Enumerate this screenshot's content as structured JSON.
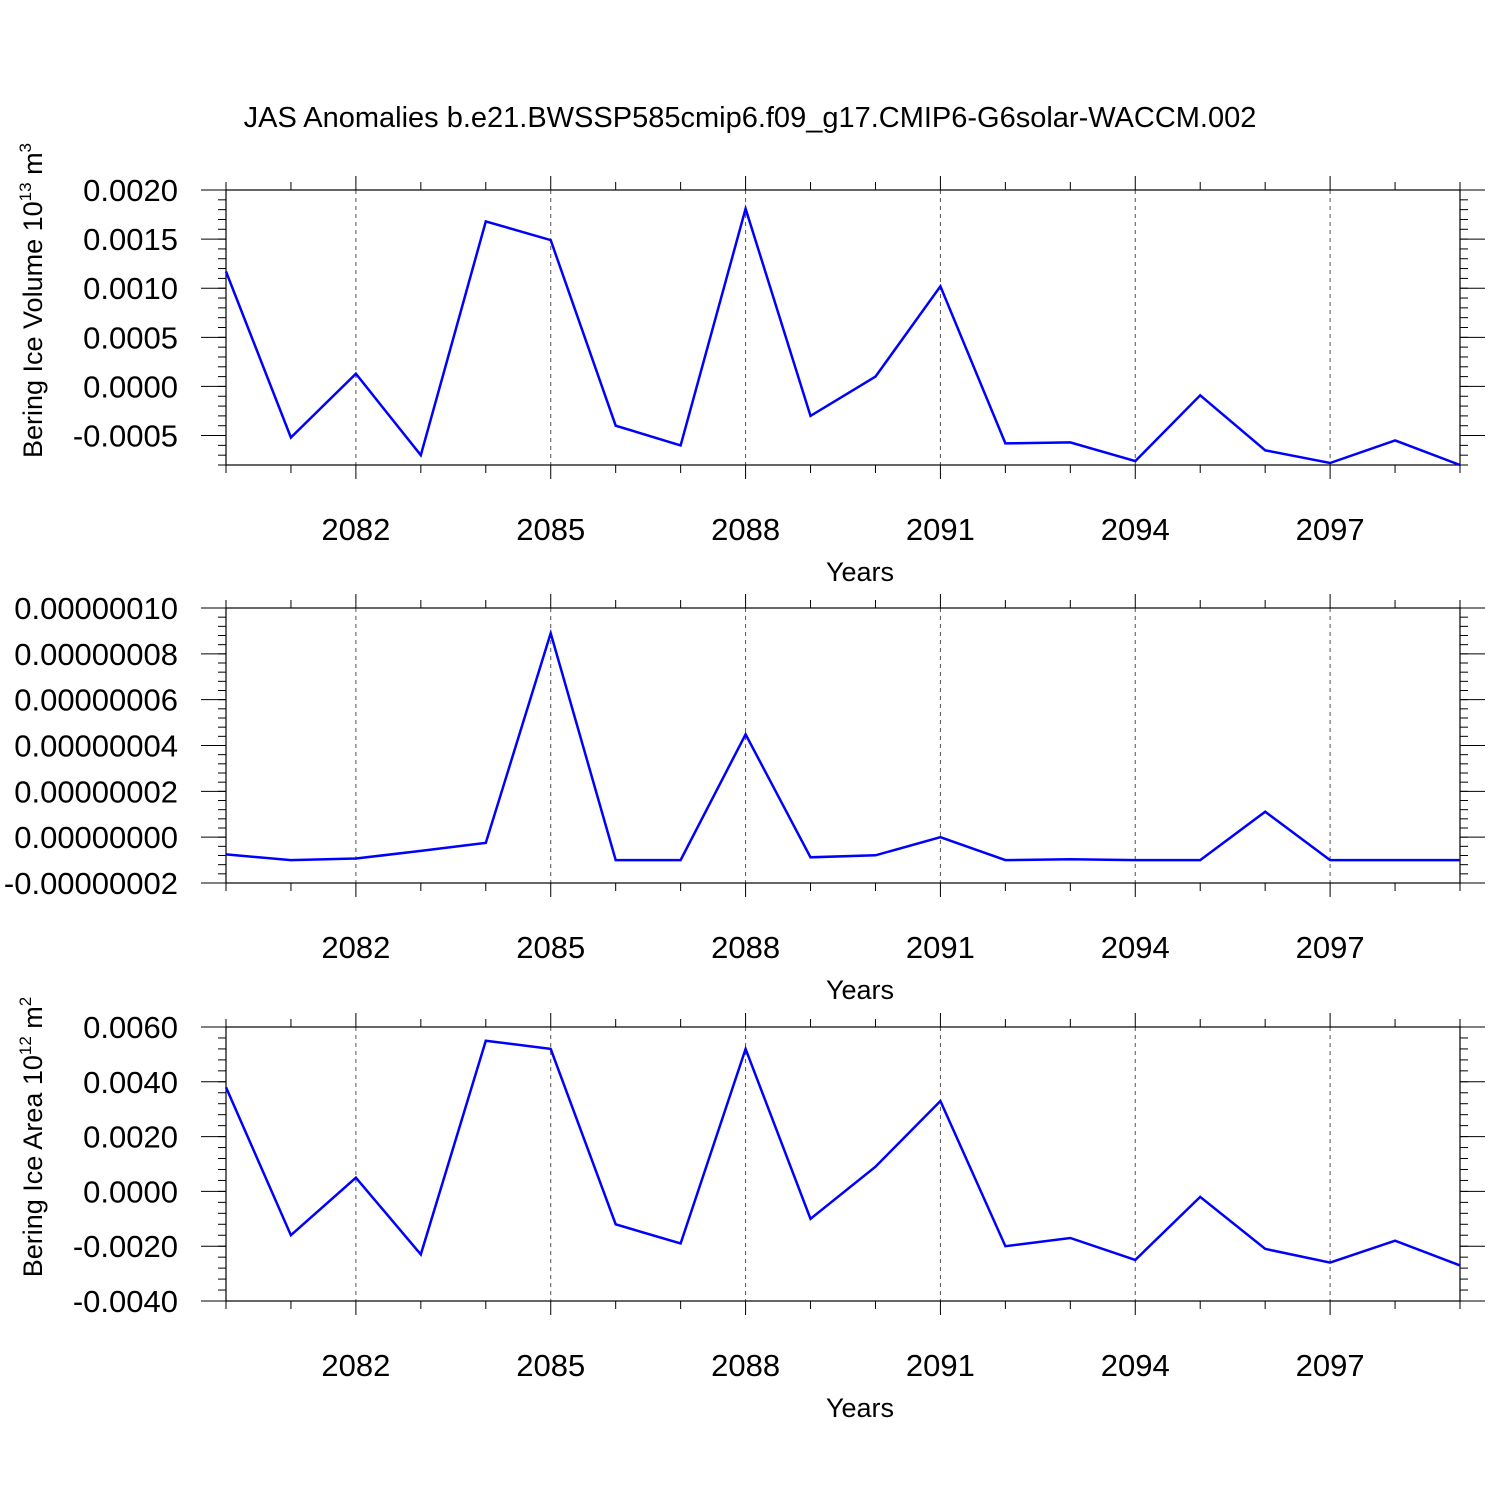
{
  "title": "JAS Anomalies b.e21.BWSSP585cmip6.f09_g17.CMIP6-G6solar-WACCM.002",
  "line_color": "#0000ff",
  "chart_data": [
    {
      "type": "line",
      "xlabel": "Years",
      "ylabel": {
        "text": "Bering Ice Volume 10",
        "sup": "13",
        "unit": " m",
        "unit_sup": "3"
      },
      "xlim": [
        2080,
        2099
      ],
      "ylim": [
        -0.0008,
        0.002
      ],
      "xticks": [
        2082,
        2085,
        2088,
        2091,
        2094,
        2097
      ],
      "xtick_labels": [
        "2082",
        "2085",
        "2088",
        "2091",
        "2094",
        "2097"
      ],
      "yticks": [
        -0.0005,
        0.0,
        0.0005,
        0.001,
        0.0015,
        0.002
      ],
      "ytick_labels": [
        "-0.0005",
        "0.0000",
        "0.0005",
        "0.0010",
        "0.0015",
        "0.0020"
      ],
      "grid": "vertical dashed at major x ticks",
      "x": [
        2080,
        2081,
        2082,
        2083,
        2084,
        2085,
        2086,
        2087,
        2088,
        2089,
        2090,
        2091,
        2092,
        2093,
        2094,
        2095,
        2096,
        2097,
        2098,
        2099
      ],
      "series": [
        {
          "values": [
            0.00117,
            -0.00052,
            0.00013,
            -0.0007,
            0.00168,
            0.00149,
            -0.0004,
            -0.0006,
            0.00181,
            -0.0003,
            0.0001,
            0.00102,
            -0.00058,
            -0.00057,
            -0.00076,
            -9e-05,
            -0.00065,
            -0.00078,
            -0.00055,
            -0.0008
          ]
        }
      ]
    },
    {
      "type": "line",
      "xlabel": "Years",
      "ylabel": null,
      "xlim": [
        2080,
        2099
      ],
      "ylim": [
        -2e-08,
        1e-07
      ],
      "xticks": [
        2082,
        2085,
        2088,
        2091,
        2094,
        2097
      ],
      "xtick_labels": [
        "2082",
        "2085",
        "2088",
        "2091",
        "2094",
        "2097"
      ],
      "yticks": [
        -2e-08,
        0.0,
        2e-08,
        4e-08,
        6e-08,
        8e-08,
        1e-07
      ],
      "ytick_labels": [
        "-0.00000002",
        "0.00000000",
        "0.00000002",
        "0.00000004",
        "0.00000006",
        "0.00000008",
        "0.00000010"
      ],
      "grid": "vertical dashed at major x ticks",
      "x": [
        2080,
        2081,
        2082,
        2083,
        2084,
        2085,
        2086,
        2087,
        2088,
        2089,
        2090,
        2091,
        2092,
        2093,
        2094,
        2095,
        2096,
        2097,
        2098,
        2099
      ],
      "series": [
        {
          "values": [
            -7.5e-09,
            -1e-08,
            -9.3e-09,
            -6e-09,
            -2.5e-09,
            8.9e-08,
            -1e-08,
            -1e-08,
            4.49e-08,
            -8.8e-09,
            -7.9e-09,
            0.0,
            -1e-08,
            -9.6e-09,
            -1e-08,
            -1e-08,
            1.11e-08,
            -1e-08,
            -1e-08,
            -1e-08
          ]
        }
      ]
    },
    {
      "type": "line",
      "xlabel": "Years",
      "ylabel": {
        "text": "Bering Ice Area 10",
        "sup": "12",
        "unit": " m",
        "unit_sup": "2"
      },
      "xlim": [
        2080,
        2099
      ],
      "ylim": [
        -0.004,
        0.006
      ],
      "xticks": [
        2082,
        2085,
        2088,
        2091,
        2094,
        2097
      ],
      "xtick_labels": [
        "2082",
        "2085",
        "2088",
        "2091",
        "2094",
        "2097"
      ],
      "yticks": [
        -0.004,
        -0.002,
        0.0,
        0.002,
        0.004,
        0.006
      ],
      "ytick_labels": [
        "-0.0040",
        "-0.0020",
        "0.0000",
        "0.0020",
        "0.0040",
        "0.0060"
      ],
      "grid": "vertical dashed at major x ticks",
      "x": [
        2080,
        2081,
        2082,
        2083,
        2084,
        2085,
        2086,
        2087,
        2088,
        2089,
        2090,
        2091,
        2092,
        2093,
        2094,
        2095,
        2096,
        2097,
        2098,
        2099
      ],
      "series": [
        {
          "values": [
            0.0038,
            -0.0016,
            0.0005,
            -0.0023,
            0.0055,
            0.0052,
            -0.0012,
            -0.0019,
            0.0052,
            -0.001,
            0.0009,
            0.0033,
            -0.002,
            -0.0017,
            -0.0025,
            -0.0002,
            -0.0021,
            -0.0026,
            -0.0018,
            -0.0027
          ]
        }
      ]
    }
  ]
}
